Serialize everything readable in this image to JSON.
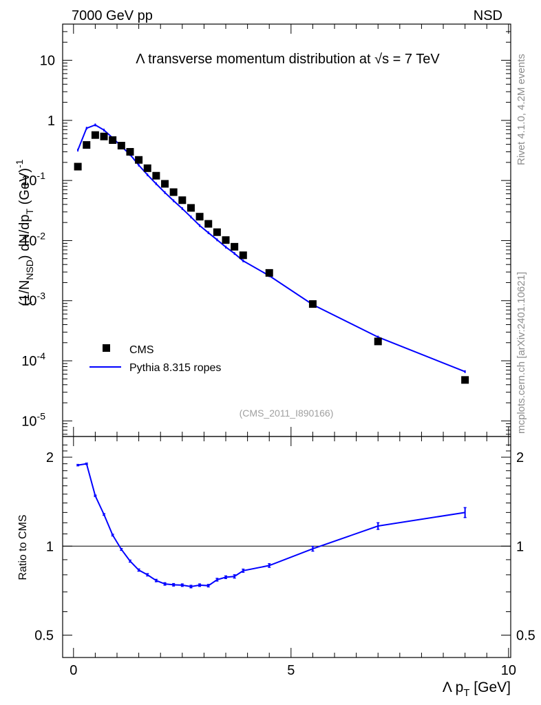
{
  "chart_data": [
    {
      "type": "scatter",
      "panel": "main",
      "title": "Λ transverse momentum distribution at √s = 7 TeV",
      "top_left_label": "7000 GeV pp",
      "top_right_label": "NSD",
      "ylabel": "(1/N_NSD) dN/dp_T (GeV)^-1",
      "y_scale": "log",
      "ylim": [
        5.5e-06,
        40
      ],
      "xlim": [
        -0.25,
        10.05
      ],
      "y_ticks": [
        {
          "value": 1e-05,
          "label": "10^-5"
        },
        {
          "value": 0.0001,
          "label": "10^-4"
        },
        {
          "value": 0.001,
          "label": "10^-3"
        },
        {
          "value": 0.01,
          "label": "10^-2"
        },
        {
          "value": 0.1,
          "label": "10^-1"
        },
        {
          "value": 1,
          "label": "1"
        },
        {
          "value": 10,
          "label": "10"
        }
      ],
      "legend_position": "bottom-left",
      "analysis_tag": "(CMS_2011_I890166)",
      "series": [
        {
          "name": "CMS",
          "style": "square-markers",
          "color": "#000000",
          "x": [
            0.1,
            0.3,
            0.5,
            0.7,
            0.9,
            1.1,
            1.3,
            1.5,
            1.7,
            1.9,
            2.1,
            2.3,
            2.5,
            2.7,
            2.9,
            3.1,
            3.3,
            3.5,
            3.7,
            3.9,
            4.5,
            5.5,
            7.0,
            9.0
          ],
          "y": [
            0.17,
            0.39,
            0.57,
            0.54,
            0.47,
            0.38,
            0.3,
            0.22,
            0.16,
            0.12,
            0.088,
            0.064,
            0.047,
            0.035,
            0.025,
            0.019,
            0.0138,
            0.0102,
            0.0079,
            0.0057,
            0.0029,
            0.00088,
            0.00021,
            4.8e-05
          ]
        },
        {
          "name": "Pythia 8.315 ropes",
          "style": "line",
          "color": "#0000ff",
          "x": [
            0.1,
            0.3,
            0.5,
            0.7,
            0.9,
            1.1,
            1.3,
            1.5,
            1.7,
            1.9,
            2.1,
            2.3,
            2.5,
            2.7,
            2.9,
            3.1,
            3.3,
            3.5,
            3.7,
            3.9,
            4.5,
            5.5,
            7.0,
            9.0
          ],
          "y": [
            0.32,
            0.74,
            0.84,
            0.69,
            0.51,
            0.37,
            0.27,
            0.18,
            0.124,
            0.088,
            0.063,
            0.046,
            0.034,
            0.0247,
            0.0178,
            0.0135,
            0.0103,
            0.0078,
            0.0061,
            0.0046,
            0.0026,
            0.00086,
            0.000248,
            6.6e-05
          ]
        }
      ]
    },
    {
      "type": "line",
      "panel": "ratio",
      "ylabel": "Ratio to CMS",
      "xlabel": "Λ p_T [GeV]",
      "y_scale": "log",
      "ylim": [
        0.42,
        2.35
      ],
      "xlim": [
        -0.25,
        10.05
      ],
      "x_ticks": [
        0,
        5,
        10
      ],
      "y_ticks": [
        0.5,
        1,
        2
      ],
      "reference_line": 1,
      "series": [
        {
          "name": "Pythia 8.315 ropes / CMS",
          "color": "#0000ff",
          "x": [
            0.1,
            0.3,
            0.5,
            0.7,
            0.9,
            1.1,
            1.3,
            1.5,
            1.7,
            1.9,
            2.1,
            2.3,
            2.5,
            2.7,
            2.9,
            3.1,
            3.3,
            3.5,
            3.7,
            3.9,
            4.5,
            5.5,
            7.0,
            9.0
          ],
          "y": [
            1.88,
            1.9,
            1.48,
            1.28,
            1.09,
            0.975,
            0.89,
            0.83,
            0.8,
            0.765,
            0.745,
            0.74,
            0.738,
            0.73,
            0.738,
            0.735,
            0.77,
            0.785,
            0.79,
            0.826,
            0.86,
            0.98,
            1.17,
            1.3
          ],
          "err": [
            0.01,
            0.01,
            0.008,
            0.008,
            0.007,
            0.007,
            0.007,
            0.007,
            0.007,
            0.007,
            0.007,
            0.007,
            0.007,
            0.007,
            0.007,
            0.007,
            0.008,
            0.008,
            0.01,
            0.01,
            0.012,
            0.018,
            0.03,
            0.05
          ]
        }
      ]
    }
  ],
  "side_labels": {
    "rivet": "Rivet 4.1.0,  4.2M events",
    "mcplots": "mcplots.cern.ch [arXiv:2401.10621]"
  }
}
